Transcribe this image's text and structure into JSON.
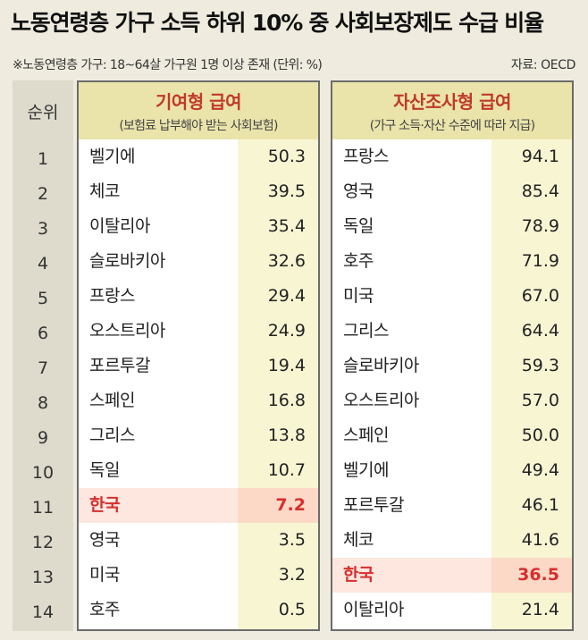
{
  "title": "노동연령층 가구 소득 하위 10% 중 사회보장제도 수급 비율",
  "subtitle": "※노동연령층 가구: 18~64살 가구원 1명 이상 존재 (단위: %)",
  "source": "자료: OECD",
  "rank_header": "순위",
  "ranks": [
    "1",
    "2",
    "3",
    "4",
    "5",
    "6",
    "7",
    "8",
    "9",
    "10",
    "11",
    "12",
    "13",
    "14"
  ],
  "colors": {
    "highlight_text": "#d62f2f",
    "highlight_bg": "#fde7df",
    "header_bg": "#eae4ab",
    "header_title": "#c0392b"
  },
  "left_panel": {
    "title": "기여형 급여",
    "subtitle": "(보험료 납부해야 받는 사회보험)",
    "rows": [
      {
        "country": "벨기에",
        "value": "50.3"
      },
      {
        "country": "체코",
        "value": "39.5"
      },
      {
        "country": "이탈리아",
        "value": "35.4"
      },
      {
        "country": "슬로바키아",
        "value": "32.6"
      },
      {
        "country": "프랑스",
        "value": "29.4"
      },
      {
        "country": "오스트리아",
        "value": "24.9"
      },
      {
        "country": "포르투갈",
        "value": "19.4"
      },
      {
        "country": "스페인",
        "value": "16.8"
      },
      {
        "country": "그리스",
        "value": "13.8"
      },
      {
        "country": "독일",
        "value": "10.7"
      },
      {
        "country": "한국",
        "value": "7.2",
        "highlight": true
      },
      {
        "country": "영국",
        "value": "3.5"
      },
      {
        "country": "미국",
        "value": "3.2"
      },
      {
        "country": "호주",
        "value": "0.5"
      }
    ]
  },
  "right_panel": {
    "title": "자산조사형 급여",
    "subtitle": "(가구 소득·자산 수준에 따라 지급)",
    "rows": [
      {
        "country": "프랑스",
        "value": "94.1"
      },
      {
        "country": "영국",
        "value": "85.4"
      },
      {
        "country": "독일",
        "value": "78.9"
      },
      {
        "country": "호주",
        "value": "71.9"
      },
      {
        "country": "미국",
        "value": "67.0"
      },
      {
        "country": "그리스",
        "value": "64.4"
      },
      {
        "country": "슬로바키아",
        "value": "59.3"
      },
      {
        "country": "오스트리아",
        "value": "57.0"
      },
      {
        "country": "스페인",
        "value": "50.0"
      },
      {
        "country": "벨기에",
        "value": "49.4"
      },
      {
        "country": "포르투갈",
        "value": "46.1"
      },
      {
        "country": "체코",
        "value": "41.6"
      },
      {
        "country": "한국",
        "value": "36.5",
        "highlight": true
      },
      {
        "country": "이탈리아",
        "value": "21.4"
      }
    ]
  }
}
